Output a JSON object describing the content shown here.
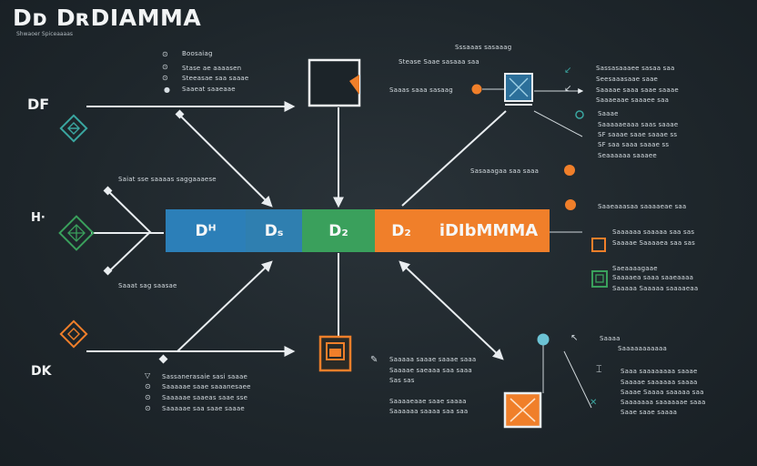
{
  "header": {
    "title": "Dᴅ DʀDIAMMA",
    "subtitle": "Shwaoer Spiceaaaas"
  },
  "side_labels": {
    "df": "DF",
    "h": "H·",
    "dk": "DK"
  },
  "band": [
    {
      "label": "Dᴴ",
      "color": "#2c7fb8"
    },
    {
      "label": "Dₛ",
      "color": "#2f7fb0"
    },
    {
      "label": "D₂",
      "color": "#3aa05c"
    },
    {
      "label": "D₂",
      "color": "#f07f2a"
    },
    {
      "label": "iDIbΜMMA",
      "color": "#f07f2a"
    }
  ],
  "notes": {
    "top_left": [
      "Boosaiag",
      "Stase ae aaaasen",
      "Steeasae saa saaae",
      "Saaeat saaeaae"
    ],
    "left_mid_top": "Saiat sse saaaas saggaaaese",
    "left_mid_bottom": "Saaat sag saasae",
    "bottom_left": [
      "Sassanerasaie sasi saaae",
      "Saaaaae saae saaanesaee",
      "Saaaaae saaeas saae sse",
      "Saaaaae saa saae saaae"
    ],
    "top_center": [
      "Sssaaas sasaaag",
      "Stease Saae sasaaa saa",
      "Saaas saaa sasaag"
    ],
    "right_top": [
      "Sassasaaaee sasaa saa",
      "Seesaaasaae saae",
      "Saaaae saaa saae saaae",
      "Saaaeaae saaaee saa"
    ],
    "right_mid": [
      "Saaae",
      "Saaaaaeaaa saas saaae",
      "SF saaae saae saaae ss",
      "SF saa saaa saaae ss",
      "Seaaaaaa saaaee"
    ],
    "center_right": "Sasaaagaa saa saaa",
    "right_band": [
      "Saaeaaasaa saaaaeae saa",
      "Saaaaaa saaaaa saa sas",
      "Saaaae Saaaaea saa sas"
    ],
    "right_lower": [
      "Saeaaaagaae",
      "Saaaaea saaa saaeaaaa",
      "Saaaaa Saaaaa saaaaeaa"
    ],
    "bottom_center": [
      "Saaaaa saaae saaae saaa",
      "Saaaae saeaaa saa saaa",
      "Sas sas"
    ],
    "bottom_center2": [
      "Saaaaeaae saae saaaa",
      "Saaaaaa saaaa saa saa"
    ],
    "bottom_right_top": [
      "Saaaa",
      "Saaaaaaaaaaa"
    ],
    "bottom_right": [
      "Saaa saaaaaaaa saaae",
      "Saaaae saaaaaa saaaa",
      "Saaae Saaaa saaaaa saa",
      "Saaaaaaa saaaaaae saaa",
      "Saae saae saaaa"
    ]
  },
  "colors": {
    "orange": "#f07f2a",
    "teal": "#3aa6a0",
    "green": "#3aa05c",
    "blue": "#2c7fb8",
    "white_line": "#e9edf0"
  }
}
